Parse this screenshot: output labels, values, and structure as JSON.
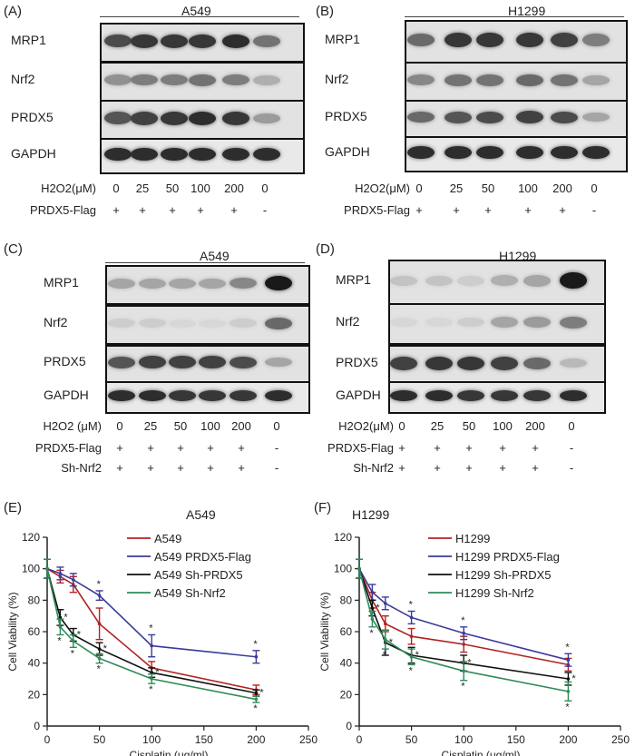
{
  "panels": [
    {
      "id": "A",
      "label": "(A)",
      "cell_line": "A549",
      "blots": [
        {
          "name": "MRP1",
          "levels": [
            0.75,
            0.85,
            0.85,
            0.85,
            0.9,
            0.55
          ]
        },
        {
          "name": "Nrf2",
          "levels": [
            0.4,
            0.5,
            0.5,
            0.55,
            0.5,
            0.25
          ]
        },
        {
          "name": "PRDX5",
          "levels": [
            0.7,
            0.8,
            0.85,
            0.9,
            0.85,
            0.35
          ]
        },
        {
          "name": "GAPDH",
          "levels": [
            0.9,
            0.9,
            0.9,
            0.9,
            0.9,
            0.9
          ]
        }
      ],
      "treatments": [
        {
          "label": "H2O2(μM)",
          "values": [
            "0",
            "25",
            "50",
            "100",
            "200",
            "0"
          ]
        },
        {
          "label": "PRDX5-Flag",
          "values": [
            "+",
            "+",
            "+",
            "+",
            "+",
            "-"
          ]
        }
      ]
    },
    {
      "id": "B",
      "label": "(B)",
      "cell_line": "H1299",
      "blots": [
        {
          "name": "MRP1",
          "levels": [
            0.6,
            0.85,
            0.85,
            0.85,
            0.8,
            0.5
          ]
        },
        {
          "name": "Nrf2",
          "levels": [
            0.45,
            0.55,
            0.55,
            0.6,
            0.55,
            0.3
          ]
        },
        {
          "name": "PRDX5",
          "levels": [
            0.6,
            0.7,
            0.75,
            0.8,
            0.75,
            0.3
          ]
        },
        {
          "name": "GAPDH",
          "levels": [
            0.9,
            0.9,
            0.9,
            0.9,
            0.9,
            0.9
          ]
        }
      ],
      "treatments": [
        {
          "label": "H2O2(μM)",
          "values": [
            "0",
            "25",
            "50",
            "100",
            "200",
            "0"
          ]
        },
        {
          "label": "PRDX5-Flag",
          "values": [
            "+",
            "+",
            "+",
            "+",
            "+",
            "-"
          ]
        }
      ]
    },
    {
      "id": "C",
      "label": "(C)",
      "cell_line": "A549",
      "blots": [
        {
          "name": "MRP1",
          "levels": [
            0.3,
            0.3,
            0.3,
            0.3,
            0.45,
            1.0
          ]
        },
        {
          "name": "Nrf2",
          "levels": [
            0.1,
            0.1,
            0.05,
            0.05,
            0.1,
            0.6
          ]
        },
        {
          "name": "PRDX5",
          "levels": [
            0.7,
            0.8,
            0.8,
            0.8,
            0.75,
            0.3
          ]
        },
        {
          "name": "GAPDH",
          "levels": [
            0.9,
            0.9,
            0.85,
            0.85,
            0.85,
            0.9
          ]
        }
      ],
      "treatments": [
        {
          "label": "H2O2 (μM)",
          "values": [
            "0",
            "25",
            "50",
            "100",
            "200",
            "0"
          ]
        },
        {
          "label": "PRDX5-Flag",
          "values": [
            "+",
            "+",
            "+",
            "+",
            "+",
            "-"
          ]
        },
        {
          "label": "Sh-Nrf2",
          "values": [
            "+",
            "+",
            "+",
            "+",
            "+",
            "-"
          ]
        }
      ]
    },
    {
      "id": "D",
      "label": "(D)",
      "cell_line": "H1299",
      "blots": [
        {
          "name": "MRP1",
          "levels": [
            0.15,
            0.15,
            0.1,
            0.25,
            0.3,
            1.0
          ]
        },
        {
          "name": "Nrf2",
          "levels": [
            0.05,
            0.05,
            0.1,
            0.3,
            0.35,
            0.5
          ]
        },
        {
          "name": "PRDX5",
          "levels": [
            0.8,
            0.85,
            0.85,
            0.8,
            0.6,
            0.2
          ]
        },
        {
          "name": "GAPDH",
          "levels": [
            0.9,
            0.9,
            0.85,
            0.85,
            0.85,
            0.9
          ]
        }
      ],
      "treatments": [
        {
          "label": "H2O2(μM)",
          "values": [
            "0",
            "25",
            "50",
            "100",
            "200",
            "0"
          ]
        },
        {
          "label": "PRDX5-Flag",
          "values": [
            "+",
            "+",
            "+",
            "+",
            "+",
            "-"
          ]
        },
        {
          "label": "Sh-Nrf2",
          "values": [
            "+",
            "+",
            "+",
            "+",
            "+",
            "-"
          ]
        }
      ]
    }
  ],
  "chart_data": [
    {
      "type": "line",
      "panel": "(E)",
      "title": "A549",
      "xlabel": "Cisplatin (μg/ml)",
      "ylabel": "Cell Viability (%)",
      "xlim": [
        0,
        250
      ],
      "ylim": [
        0,
        120
      ],
      "xticks": [
        "0",
        "50",
        "100",
        "150",
        "200",
        "250"
      ],
      "yticks": [
        "0",
        "20",
        "40",
        "60",
        "80",
        "100",
        "120"
      ],
      "x": [
        0,
        12.5,
        25,
        50,
        100,
        200
      ],
      "legend_position": "top-right",
      "series": [
        {
          "name": "A549",
          "color": "#b22222",
          "values": [
            100,
            95,
            90,
            65,
            37,
            23
          ],
          "errors": [
            6,
            4,
            5,
            10,
            4,
            3
          ]
        },
        {
          "name": "A549 PRDX5-Flag",
          "color": "#3b3b9a",
          "values": [
            100,
            97,
            93,
            83,
            51,
            44
          ],
          "errors": [
            6,
            4,
            4,
            3,
            7,
            4
          ]
        },
        {
          "name": "A549 Sh-PRDX5",
          "color": "#111111",
          "values": [
            100,
            69,
            58,
            49,
            34,
            21
          ],
          "errors": [
            6,
            5,
            4,
            4,
            3,
            2
          ]
        },
        {
          "name": "A549 Sh-Nrf2",
          "color": "#2e8b57",
          "values": [
            100,
            63,
            54,
            43,
            30,
            17
          ],
          "errors": [
            6,
            5,
            4,
            3,
            3,
            2
          ]
        }
      ],
      "annotation": "*"
    },
    {
      "type": "line",
      "panel": "(F)",
      "title": "H1299",
      "xlabel": "Cisplatin (μg/ml)",
      "ylabel": "Cell Viability (%)",
      "xlim": [
        0,
        250
      ],
      "ylim": [
        0,
        120
      ],
      "xticks": [
        "0",
        "50",
        "100",
        "150",
        "200",
        "250"
      ],
      "yticks": [
        "0",
        "20",
        "40",
        "60",
        "80",
        "100",
        "120"
      ],
      "x": [
        0,
        12.5,
        25,
        50,
        100,
        200
      ],
      "legend_position": "top-right",
      "series": [
        {
          "name": "H1299",
          "color": "#b22222",
          "values": [
            100,
            80,
            65,
            57,
            52,
            39
          ],
          "errors": [
            6,
            5,
            5,
            5,
            5,
            4
          ]
        },
        {
          "name": "H1299 PRDX5-Flag",
          "color": "#3b3b9a",
          "values": [
            100,
            85,
            78,
            69,
            59,
            42
          ],
          "errors": [
            6,
            5,
            4,
            4,
            4,
            4
          ]
        },
        {
          "name": "H1299 Sh-PRDX5",
          "color": "#111111",
          "values": [
            100,
            75,
            53,
            45,
            40,
            30
          ],
          "errors": [
            6,
            5,
            8,
            5,
            5,
            4
          ]
        },
        {
          "name": "H1299 Sh-Nrf2",
          "color": "#2e8b57",
          "values": [
            100,
            68,
            55,
            44,
            35,
            22
          ],
          "errors": [
            6,
            5,
            6,
            5,
            6,
            6
          ]
        }
      ],
      "annotation": "*"
    }
  ]
}
